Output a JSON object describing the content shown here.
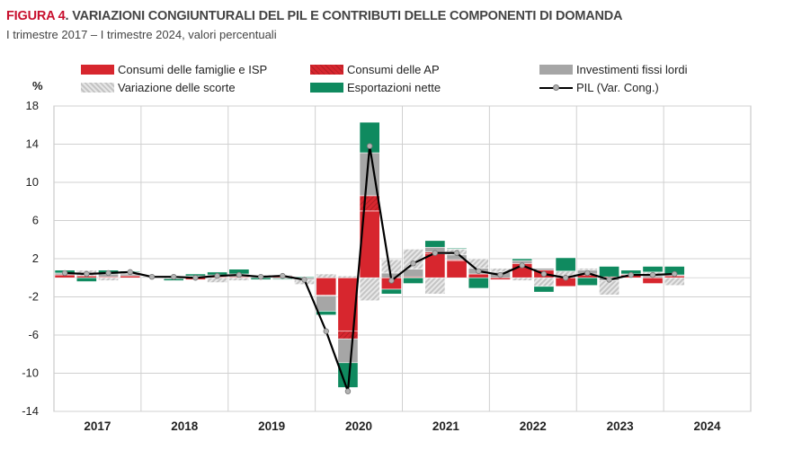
{
  "header": {
    "figure_label": "FIGURA 4",
    "title": ". VARIAZIONI CONGIUNTURALI DEL PIL E CONTRIBUTI DELLE COMPONENTI DI DOMANDA",
    "subtitle": "I trimestre 2017 – I trimestre 2024, valori percentuali"
  },
  "colors": {
    "consumi_famiglie": "#d7262e",
    "consumi_ap": "#d7262e",
    "investimenti": "#a6a6a6",
    "scorte": "#d9d9d9",
    "esportazioni": "#0f8a5f",
    "pil": "#000000"
  },
  "chart_data": {
    "type": "bar",
    "subtype": "stacked bar with line overlay",
    "unit_label": "%",
    "ylim": [
      -14,
      18
    ],
    "yticks": [
      18,
      14,
      10,
      6,
      2,
      -2,
      -6,
      -10,
      -14
    ],
    "grid": true,
    "legend_position": "top",
    "year_labels": [
      "2017",
      "2018",
      "2019",
      "2020",
      "2021",
      "2022",
      "2023",
      "2024"
    ],
    "quarters_per_year": 4,
    "categories": [
      "2017Q1",
      "2017Q2",
      "2017Q3",
      "2017Q4",
      "2018Q1",
      "2018Q2",
      "2018Q3",
      "2018Q4",
      "2019Q1",
      "2019Q2",
      "2019Q3",
      "2019Q4",
      "2020Q1",
      "2020Q2",
      "2020Q3",
      "2020Q4",
      "2021Q1",
      "2021Q2",
      "2021Q3",
      "2021Q4",
      "2022Q1",
      "2022Q2",
      "2022Q3",
      "2022Q4",
      "2023Q1",
      "2023Q2",
      "2023Q3",
      "2023Q4",
      "2024Q1"
    ],
    "series": [
      {
        "name": "Consumi delle famiglie e ISP",
        "key": "consumi_famiglie",
        "values": [
          0.3,
          0.2,
          0.1,
          0.2,
          0.0,
          0.1,
          -0.2,
          0.1,
          0.1,
          0.0,
          0.2,
          0.0,
          -1.8,
          -5.6,
          7.0,
          -1.2,
          0.1,
          2.5,
          1.8,
          0.4,
          -0.2,
          1.5,
          0.8,
          -0.9,
          0.3,
          0.1,
          0.3,
          -0.6,
          0.2
        ]
      },
      {
        "name": "Consumi delle AP",
        "key": "consumi_ap",
        "values": [
          0.0,
          0.0,
          0.0,
          0.0,
          0.0,
          0.0,
          0.0,
          0.0,
          0.0,
          0.0,
          0.0,
          0.0,
          -0.1,
          -0.8,
          1.6,
          0.0,
          0.0,
          0.2,
          0.1,
          0.0,
          0.0,
          0.0,
          0.0,
          0.0,
          0.1,
          0.0,
          0.0,
          0.0,
          0.0
        ]
      },
      {
        "name": "Investimenti fissi lordi",
        "key": "investimenti",
        "values": [
          0.2,
          0.0,
          0.3,
          0.2,
          0.1,
          0.0,
          0.1,
          0.2,
          0.3,
          0.1,
          -0.1,
          -0.2,
          -1.6,
          -2.5,
          4.5,
          0.5,
          0.8,
          0.5,
          0.5,
          0.6,
          0.6,
          0.3,
          0.2,
          0.2,
          0.4,
          -0.3,
          0.1,
          0.2,
          0.1
        ]
      },
      {
        "name": "Variazione delle scorte",
        "key": "scorte",
        "values": [
          0.0,
          0.6,
          -0.3,
          0.2,
          0.0,
          -0.1,
          0.1,
          -0.5,
          -0.3,
          0.2,
          0.1,
          -0.5,
          0.4,
          0.2,
          -2.4,
          1.4,
          2.1,
          -1.7,
          0.6,
          1.0,
          0.4,
          -0.3,
          -0.9,
          0.5,
          0.2,
          -1.5,
          0.0,
          0.4,
          -0.8
        ]
      },
      {
        "name": "Esportazioni nette",
        "key": "esportazioni",
        "values": [
          0.3,
          -0.4,
          0.4,
          0.1,
          0.0,
          -0.2,
          0.2,
          0.3,
          0.5,
          -0.2,
          -0.1,
          0.1,
          -0.4,
          -2.6,
          3.2,
          -0.5,
          -0.6,
          0.7,
          0.1,
          -1.1,
          0.0,
          0.2,
          -0.6,
          1.4,
          -0.8,
          1.1,
          0.4,
          0.6,
          0.9
        ]
      },
      {
        "name": "PIL (Var. Cong.)",
        "key": "pil",
        "type": "line",
        "values": [
          0.5,
          0.4,
          0.5,
          0.6,
          0.1,
          0.1,
          0.0,
          0.2,
          0.3,
          0.1,
          0.2,
          -0.2,
          -5.6,
          -11.9,
          13.8,
          -0.3,
          1.5,
          2.6,
          2.6,
          0.7,
          0.3,
          1.3,
          0.4,
          0.0,
          0.5,
          -0.2,
          0.3,
          0.3,
          0.4
        ]
      }
    ]
  }
}
